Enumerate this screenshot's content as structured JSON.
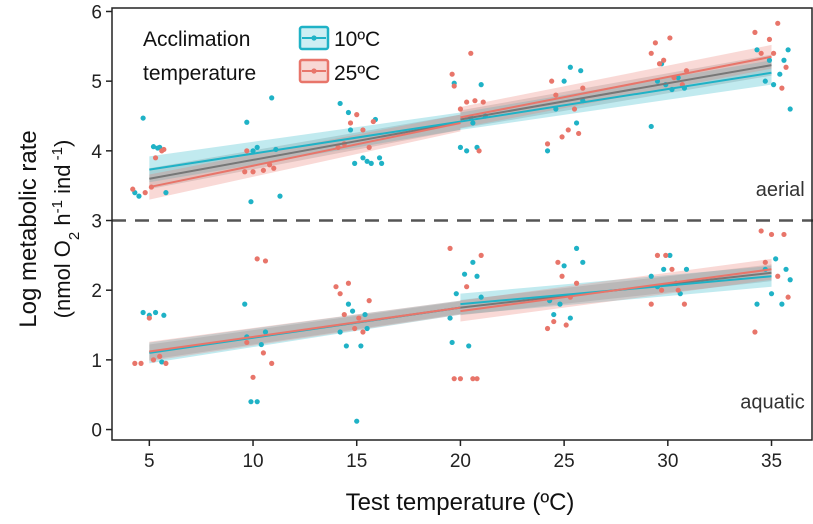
{
  "chart_data": {
    "type": "scatter",
    "xlabel": "Test temperature (ºC)",
    "ylabel_main": "Log metabolic rate",
    "ylabel_unit": {
      "open": "(nmol O",
      "sub1": "2",
      "mid1": " h",
      "sup1": "-1",
      "mid2": " ind",
      "sup2": " -1",
      "close": ")"
    },
    "xlim": [
      3.2,
      37
    ],
    "ylim": [
      -0.15,
      6.05
    ],
    "xticks": [
      5,
      10,
      15,
      20,
      25,
      30,
      35
    ],
    "yticks": [
      0,
      1,
      2,
      3,
      4,
      5,
      6
    ],
    "divider_y": 3,
    "annotations": [
      {
        "text": "aerial",
        "x": 36.6,
        "y": 3.35
      },
      {
        "text": "aquatic",
        "x": 36.6,
        "y": 0.3
      }
    ],
    "legend": {
      "title_line1": "Acclimation",
      "title_line2": "temperature",
      "entries": [
        "10ºC",
        "25ºC"
      ]
    },
    "colors": {
      "10C": "#1fb2c6",
      "25C": "#e8756a",
      "grey": "#666666",
      "divider": "#555555"
    },
    "series": [
      {
        "name": "10ºC",
        "color": "#1fb2c6",
        "points": [
          [
            4.3,
            3.4
          ],
          [
            4.5,
            3.35
          ],
          [
            4.7,
            4.47
          ],
          [
            5.2,
            4.06
          ],
          [
            5.4,
            4.04
          ],
          [
            5.5,
            4.05
          ],
          [
            5.8,
            3.4
          ],
          [
            9.7,
            4.41
          ],
          [
            9.9,
            3.27
          ],
          [
            10.0,
            4.0
          ],
          [
            10.2,
            4.05
          ],
          [
            10.9,
            4.76
          ],
          [
            11.1,
            4.02
          ],
          [
            11.3,
            3.35
          ],
          [
            14.2,
            4.68
          ],
          [
            14.6,
            4.55
          ],
          [
            14.7,
            4.3
          ],
          [
            14.9,
            3.82
          ],
          [
            15.3,
            3.9
          ],
          [
            15.5,
            3.85
          ],
          [
            15.7,
            3.82
          ],
          [
            15.9,
            4.45
          ],
          [
            16.1,
            3.9
          ],
          [
            16.2,
            3.82
          ],
          [
            19.7,
            4.97
          ],
          [
            20.0,
            4.05
          ],
          [
            20.3,
            4.0
          ],
          [
            20.5,
            4.48
          ],
          [
            20.6,
            4.4
          ],
          [
            20.8,
            4.05
          ],
          [
            21.0,
            4.95
          ],
          [
            21.2,
            4.5
          ],
          [
            24.2,
            4.0
          ],
          [
            24.6,
            4.6
          ],
          [
            25.0,
            5.0
          ],
          [
            25.3,
            5.2
          ],
          [
            25.6,
            4.4
          ],
          [
            25.8,
            5.15
          ],
          [
            25.9,
            4.72
          ],
          [
            29.2,
            4.35
          ],
          [
            29.5,
            5.0
          ],
          [
            29.7,
            5.25
          ],
          [
            29.9,
            4.95
          ],
          [
            30.2,
            4.88
          ],
          [
            30.5,
            5.05
          ],
          [
            30.8,
            4.9
          ],
          [
            34.3,
            5.45
          ],
          [
            34.7,
            5.0
          ],
          [
            34.9,
            5.3
          ],
          [
            35.1,
            4.95
          ],
          [
            35.4,
            5.1
          ],
          [
            35.6,
            5.3
          ],
          [
            35.8,
            5.45
          ],
          [
            35.9,
            4.6
          ],
          [
            4.7,
            1.68
          ],
          [
            5.0,
            1.64
          ],
          [
            5.3,
            1.68
          ],
          [
            5.6,
            0.97
          ],
          [
            5.7,
            1.64
          ],
          [
            9.6,
            1.8
          ],
          [
            9.7,
            1.33
          ],
          [
            9.9,
            0.4
          ],
          [
            10.2,
            0.4
          ],
          [
            10.4,
            1.22
          ],
          [
            10.6,
            1.4
          ],
          [
            14.2,
            1.4
          ],
          [
            14.5,
            1.2
          ],
          [
            14.6,
            1.8
          ],
          [
            14.8,
            1.7
          ],
          [
            15.0,
            0.12
          ],
          [
            15.2,
            1.2
          ],
          [
            15.4,
            1.65
          ],
          [
            15.5,
            1.45
          ],
          [
            19.5,
            1.6
          ],
          [
            19.6,
            1.25
          ],
          [
            19.8,
            1.95
          ],
          [
            20.2,
            2.23
          ],
          [
            20.4,
            1.2
          ],
          [
            20.6,
            2.4
          ],
          [
            20.8,
            2.2
          ],
          [
            21.0,
            1.9
          ],
          [
            24.3,
            1.85
          ],
          [
            24.5,
            1.65
          ],
          [
            24.8,
            1.8
          ],
          [
            25.0,
            2.35
          ],
          [
            25.3,
            1.6
          ],
          [
            25.6,
            2.6
          ],
          [
            25.9,
            2.4
          ],
          [
            29.2,
            2.2
          ],
          [
            29.5,
            2.05
          ],
          [
            29.8,
            2.3
          ],
          [
            30.1,
            2.5
          ],
          [
            30.4,
            2.1
          ],
          [
            30.6,
            1.95
          ],
          [
            30.9,
            2.3
          ],
          [
            34.3,
            1.8
          ],
          [
            34.7,
            2.3
          ],
          [
            35.0,
            1.95
          ],
          [
            35.2,
            2.45
          ],
          [
            35.5,
            1.8
          ],
          [
            35.7,
            2.3
          ],
          [
            35.9,
            2.15
          ]
        ],
        "fits": [
          {
            "x": [
              5,
              20
            ],
            "y": [
              3.73,
              4.42
            ],
            "band_lo": [
              3.55,
              4.3
            ],
            "band_hi": [
              3.92,
              4.55
            ]
          },
          {
            "x": [
              20,
              35
            ],
            "y": [
              4.42,
              5.12
            ],
            "band_lo": [
              4.3,
              4.95
            ],
            "band_hi": [
              4.55,
              5.3
            ]
          },
          {
            "x": [
              5,
              20
            ],
            "y": [
              1.1,
              1.75
            ],
            "band_lo": [
              0.95,
              1.65
            ],
            "band_hi": [
              1.25,
              1.85
            ]
          },
          {
            "x": [
              20,
              35
            ],
            "y": [
              1.8,
              2.2
            ],
            "band_lo": [
              1.65,
              2.05
            ],
            "band_hi": [
              1.95,
              2.35
            ]
          }
        ]
      },
      {
        "name": "25ºC",
        "color": "#e8756a",
        "points": [
          [
            4.2,
            3.45
          ],
          [
            4.8,
            3.4
          ],
          [
            5.1,
            3.48
          ],
          [
            5.3,
            3.9
          ],
          [
            5.6,
            4.0
          ],
          [
            5.7,
            4.02
          ],
          [
            9.6,
            3.7
          ],
          [
            9.7,
            4.0
          ],
          [
            10.0,
            3.7
          ],
          [
            10.5,
            3.72
          ],
          [
            10.8,
            3.8
          ],
          [
            11.0,
            3.75
          ],
          [
            14.1,
            4.05
          ],
          [
            14.4,
            4.1
          ],
          [
            14.7,
            4.4
          ],
          [
            15.0,
            4.52
          ],
          [
            15.3,
            4.3
          ],
          [
            15.6,
            4.05
          ],
          [
            15.8,
            4.42
          ],
          [
            19.6,
            5.1
          ],
          [
            19.7,
            4.93
          ],
          [
            20.0,
            4.6
          ],
          [
            20.3,
            4.7
          ],
          [
            20.5,
            5.4
          ],
          [
            20.7,
            4.72
          ],
          [
            20.9,
            4.0
          ],
          [
            21.1,
            4.7
          ],
          [
            24.2,
            4.1
          ],
          [
            24.4,
            5.0
          ],
          [
            24.6,
            4.8
          ],
          [
            24.9,
            4.2
          ],
          [
            25.2,
            4.3
          ],
          [
            25.5,
            4.6
          ],
          [
            25.7,
            4.25
          ],
          [
            25.9,
            4.9
          ],
          [
            29.2,
            5.4
          ],
          [
            29.4,
            5.55
          ],
          [
            29.6,
            5.25
          ],
          [
            29.8,
            5.3
          ],
          [
            30.1,
            5.62
          ],
          [
            30.3,
            5.05
          ],
          [
            30.7,
            4.95
          ],
          [
            30.9,
            5.15
          ],
          [
            34.2,
            5.7
          ],
          [
            34.5,
            5.4
          ],
          [
            34.9,
            5.6
          ],
          [
            35.1,
            5.4
          ],
          [
            35.3,
            5.83
          ],
          [
            35.5,
            4.9
          ],
          [
            35.7,
            5.2
          ],
          [
            4.3,
            0.95
          ],
          [
            4.6,
            0.95
          ],
          [
            5.0,
            1.6
          ],
          [
            5.2,
            1.0
          ],
          [
            5.5,
            1.05
          ],
          [
            5.8,
            0.95
          ],
          [
            9.7,
            1.25
          ],
          [
            10.0,
            0.75
          ],
          [
            10.2,
            2.45
          ],
          [
            10.5,
            1.1
          ],
          [
            10.6,
            2.42
          ],
          [
            10.9,
            0.95
          ],
          [
            14.0,
            2.05
          ],
          [
            14.2,
            1.95
          ],
          [
            14.4,
            1.65
          ],
          [
            14.6,
            2.1
          ],
          [
            14.9,
            1.45
          ],
          [
            15.1,
            1.6
          ],
          [
            15.3,
            1.4
          ],
          [
            15.6,
            1.85
          ],
          [
            19.5,
            2.6
          ],
          [
            19.7,
            0.73
          ],
          [
            20.0,
            0.73
          ],
          [
            20.3,
            2.05
          ],
          [
            20.6,
            0.73
          ],
          [
            20.8,
            0.73
          ],
          [
            21.0,
            2.5
          ],
          [
            24.2,
            1.45
          ],
          [
            24.5,
            1.55
          ],
          [
            24.7,
            2.4
          ],
          [
            24.9,
            2.2
          ],
          [
            25.1,
            1.5
          ],
          [
            25.3,
            1.9
          ],
          [
            25.6,
            2.1
          ],
          [
            29.2,
            1.8
          ],
          [
            29.5,
            2.5
          ],
          [
            29.7,
            2.0
          ],
          [
            29.9,
            2.5
          ],
          [
            30.2,
            2.3
          ],
          [
            30.5,
            2.0
          ],
          [
            30.8,
            1.8
          ],
          [
            34.2,
            1.4
          ],
          [
            34.5,
            2.85
          ],
          [
            34.7,
            2.4
          ],
          [
            35.0,
            2.8
          ],
          [
            35.3,
            2.2
          ],
          [
            35.6,
            2.8
          ],
          [
            35.8,
            1.9
          ]
        ],
        "fits": [
          {
            "x": [
              5,
              20
            ],
            "y": [
              3.48,
              4.4
            ],
            "band_lo": [
              3.3,
              4.28
            ],
            "band_hi": [
              3.66,
              4.52
            ]
          },
          {
            "x": [
              20,
              35
            ],
            "y": [
              4.48,
              5.35
            ],
            "band_lo": [
              4.33,
              5.18
            ],
            "band_hi": [
              4.63,
              5.52
            ]
          },
          {
            "x": [
              5,
              20
            ],
            "y": [
              1.12,
              1.75
            ],
            "band_lo": [
              0.98,
              1.65
            ],
            "band_hi": [
              1.26,
              1.85
            ]
          },
          {
            "x": [
              20,
              35
            ],
            "y": [
              1.7,
              2.3
            ],
            "band_lo": [
              1.55,
              2.15
            ],
            "band_hi": [
              1.85,
              2.45
            ]
          }
        ]
      }
    ],
    "grey_fits": [
      {
        "x": [
          5,
          20
        ],
        "y": [
          3.6,
          4.41
        ],
        "band_lo": [
          3.45,
          4.3
        ],
        "band_hi": [
          3.75,
          4.52
        ]
      },
      {
        "x": [
          20,
          35
        ],
        "y": [
          4.45,
          5.23
        ],
        "band_lo": [
          4.32,
          5.08
        ],
        "band_hi": [
          4.58,
          5.38
        ]
      },
      {
        "x": [
          5,
          20
        ],
        "y": [
          1.11,
          1.75
        ],
        "band_lo": [
          1.0,
          1.66
        ],
        "band_hi": [
          1.22,
          1.84
        ]
      },
      {
        "x": [
          20,
          35
        ],
        "y": [
          1.75,
          2.25
        ],
        "band_lo": [
          1.64,
          2.13
        ],
        "band_hi": [
          1.86,
          2.37
        ]
      }
    ]
  }
}
